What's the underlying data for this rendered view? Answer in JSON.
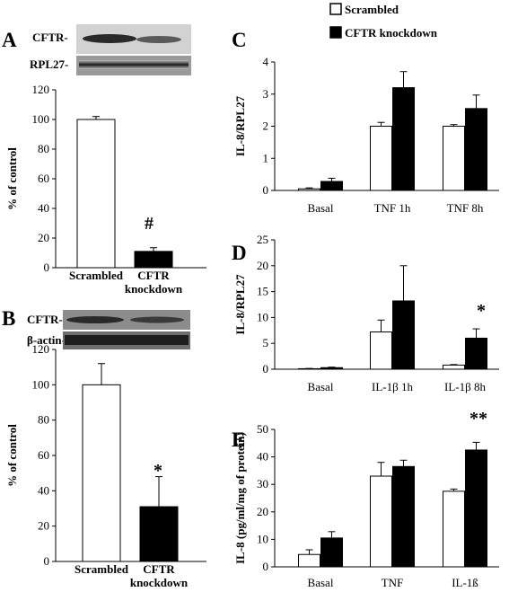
{
  "legend": {
    "items": [
      {
        "label": "Scrambled",
        "color": "#ffffff"
      },
      {
        "label": "CFTR knockdown",
        "color": "#000000"
      }
    ]
  },
  "panels": {
    "A": {
      "letter": "A",
      "blot_labels": [
        "CFTR-",
        "RPL27-"
      ],
      "significance": "#"
    },
    "B": {
      "letter": "B",
      "blot_labels": [
        "CFTR-",
        "β-actin-"
      ],
      "significance": "*"
    },
    "C": {
      "letter": "C"
    },
    "D": {
      "letter": "D",
      "significance": "*"
    },
    "E": {
      "letter": "E",
      "significance": "**"
    }
  },
  "colors": {
    "scrambled": "#ffffff",
    "knockdown": "#000000",
    "axis": "#000000"
  },
  "chart_data": [
    {
      "id": "A",
      "type": "bar",
      "categories": [
        "Scrambled",
        "CFTR knockdown"
      ],
      "category_lines": [
        [
          "Scrambled"
        ],
        [
          "CFTR",
          "knockdown"
        ]
      ],
      "values": [
        100,
        11
      ],
      "errors": [
        2,
        2.5
      ],
      "colors": [
        "#ffffff",
        "#000000"
      ],
      "ylabel": "% of control",
      "ylim": [
        0,
        120
      ],
      "yticks": [
        0,
        20,
        40,
        60,
        80,
        100,
        120
      ]
    },
    {
      "id": "B",
      "type": "bar",
      "categories": [
        "Scrambled",
        "CFTR knockdown"
      ],
      "category_lines": [
        [
          "Scrambled"
        ],
        [
          "CFTR",
          "knockdown"
        ]
      ],
      "values": [
        100,
        31
      ],
      "errors": [
        12,
        17
      ],
      "colors": [
        "#ffffff",
        "#000000"
      ],
      "ylabel": "% of control",
      "ylim": [
        0,
        120
      ],
      "yticks": [
        0,
        20,
        40,
        60,
        80,
        100,
        120
      ]
    },
    {
      "id": "C",
      "type": "bar",
      "categories": [
        "Basal",
        "TNF 1h",
        "TNF 8h"
      ],
      "series": [
        {
          "name": "Scrambled",
          "values": [
            0.05,
            2.0,
            2.0
          ],
          "errors": [
            0.03,
            0.12,
            0.05
          ]
        },
        {
          "name": "CFTR knockdown",
          "values": [
            0.28,
            3.2,
            2.55
          ],
          "errors": [
            0.1,
            0.5,
            0.42
          ]
        }
      ],
      "ylabel": "IL-8/RPL27",
      "ylim": [
        0,
        4
      ],
      "yticks": [
        0,
        1,
        2,
        3,
        4
      ]
    },
    {
      "id": "D",
      "type": "bar",
      "categories": [
        "Basal",
        "IL-1β 1h",
        "IL-1β 8h"
      ],
      "series": [
        {
          "name": "Scrambled",
          "values": [
            0.1,
            7.2,
            0.8
          ],
          "errors": [
            0.05,
            2.3,
            0.1
          ]
        },
        {
          "name": "CFTR knockdown",
          "values": [
            0.3,
            13.2,
            6.0
          ],
          "errors": [
            0.1,
            6.8,
            1.8
          ]
        }
      ],
      "ylabel": "IL-8/RPL27",
      "ylim": [
        0,
        25
      ],
      "yticks": [
        0,
        5,
        10,
        15,
        20,
        25
      ]
    },
    {
      "id": "E",
      "type": "bar",
      "categories": [
        "Basal",
        "TNF",
        "IL-1ß"
      ],
      "series": [
        {
          "name": "Scrambled",
          "values": [
            4.5,
            33,
            27.5
          ],
          "errors": [
            1.7,
            5,
            0.8
          ]
        },
        {
          "name": "CFTR knockdown",
          "values": [
            10.5,
            36.5,
            42.5
          ],
          "errors": [
            2.3,
            2.3,
            2.8
          ]
        }
      ],
      "ylabel": "IL-8 (pg/ml/mg of protein)",
      "ylim": [
        0,
        50
      ],
      "yticks": [
        0,
        10,
        20,
        30,
        40,
        50
      ]
    }
  ]
}
